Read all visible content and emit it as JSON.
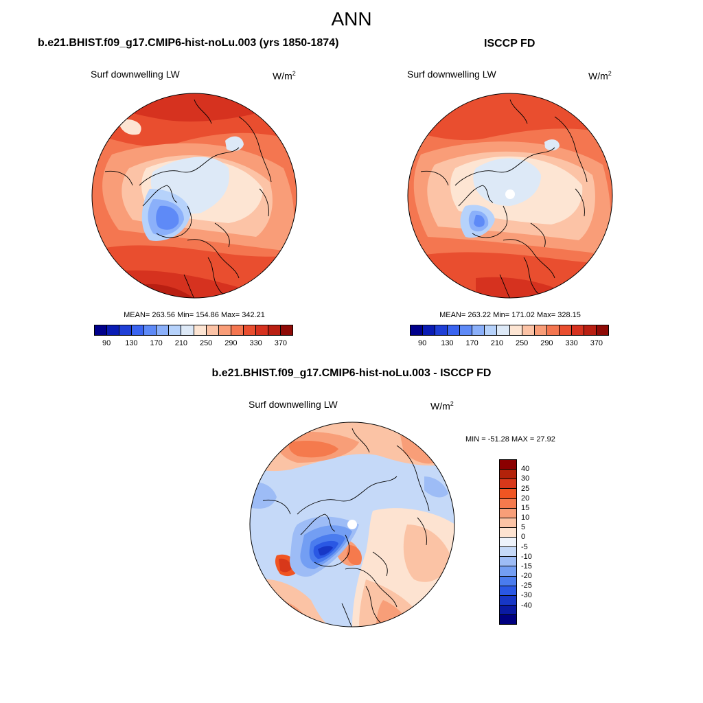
{
  "page": {
    "main_title": "ANN"
  },
  "panels": [
    {
      "title": "b.e21.BHIST.f09_g17.CMIP6-hist-noLu.003 (yrs 1850-1874)",
      "variable": "Surf downwelling LW",
      "units_base": "W/m",
      "units_exp": "2",
      "stats": "MEAN= 263.56  Min= 154.86  Max= 342.21"
    },
    {
      "title": "ISCCP FD",
      "variable": "Surf downwelling LW",
      "units_base": "W/m",
      "units_exp": "2",
      "stats": "MEAN= 263.22  Min= 171.02  Max= 328.15"
    },
    {
      "title": "b.e21.BHIST.f09_g17.CMIP6-hist-noLu.003 - ISCCP FD",
      "variable": "Surf downwelling LW",
      "units_base": "W/m",
      "units_exp": "2",
      "stats": "MIN = -51.28 MAX =  27.92"
    }
  ],
  "colorbar_abs": {
    "colors": [
      "#00008b",
      "#0a1cb4",
      "#1f3fd6",
      "#3a64f0",
      "#5e8af7",
      "#8bb0fa",
      "#b6d2fb",
      "#dde9f7",
      "#fde5d3",
      "#fcc3a6",
      "#f99d78",
      "#f47650",
      "#e94e2f",
      "#d6321f",
      "#b91f12",
      "#8f0b07"
    ],
    "ticks": [
      "90",
      "130",
      "170",
      "210",
      "250",
      "290",
      "330",
      "370"
    ]
  },
  "colorbar_diff": {
    "colors": [
      "#8b0000",
      "#b3220a",
      "#d8381a",
      "#f05522",
      "#f57a4d",
      "#f89e78",
      "#fbc3a5",
      "#fde3d1",
      "#eef3fb",
      "#c5d9f8",
      "#9dbcf6",
      "#739ef3",
      "#4a7cee",
      "#2a58e4",
      "#1737c6",
      "#0a1aa2",
      "#000080"
    ],
    "ticks": [
      "40",
      "30",
      "25",
      "20",
      "15",
      "10",
      "5",
      "0",
      "-5",
      "-10",
      "-15",
      "-20",
      "-25",
      "-30",
      "-40"
    ]
  },
  "chart_data": [
    {
      "type": "heatmap",
      "projection": "north polar stereographic",
      "title": "b.e21.BHIST.f09_g17.CMIP6-hist-noLu.003 (yrs 1850-1874)",
      "variable": "Surf downwelling LW",
      "units": "W/m2",
      "mean": 263.56,
      "min": 154.86,
      "max": 342.21,
      "color_levels": [
        90,
        110,
        130,
        150,
        170,
        190,
        210,
        230,
        250,
        270,
        290,
        310,
        330,
        350,
        370
      ]
    },
    {
      "type": "heatmap",
      "projection": "north polar stereographic",
      "title": "ISCCP FD",
      "variable": "Surf downwelling LW",
      "units": "W/m2",
      "mean": 263.22,
      "min": 171.02,
      "max": 328.15,
      "color_levels": [
        90,
        110,
        130,
        150,
        170,
        190,
        210,
        230,
        250,
        270,
        290,
        310,
        330,
        350,
        370
      ]
    },
    {
      "type": "heatmap",
      "projection": "north polar stereographic",
      "title": "b.e21.BHIST.f09_g17.CMIP6-hist-noLu.003 - ISCCP FD",
      "variable": "Surf downwelling LW",
      "units": "W/m2",
      "min": -51.28,
      "max": 27.92,
      "color_levels": [
        -40,
        -30,
        -25,
        -20,
        -15,
        -10,
        -5,
        0,
        5,
        10,
        15,
        20,
        25,
        30,
        40
      ]
    }
  ]
}
